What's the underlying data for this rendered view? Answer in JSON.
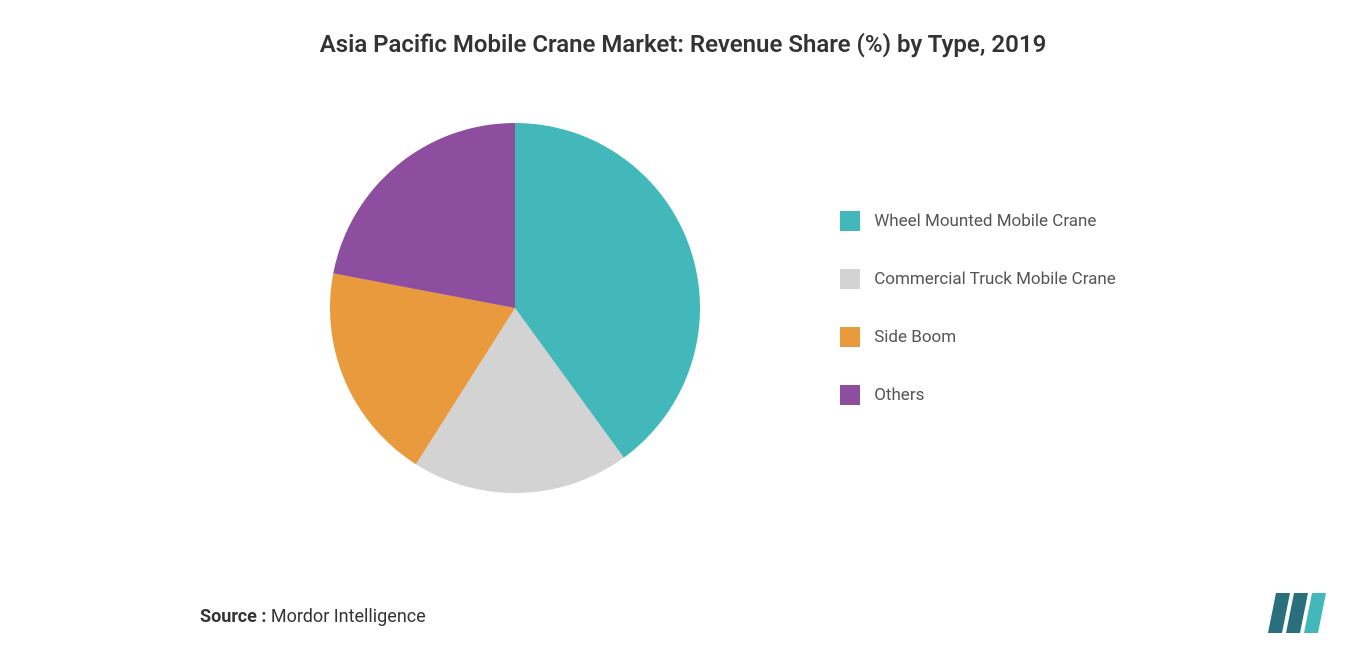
{
  "chart": {
    "type": "pie",
    "title": "Asia Pacific Mobile Crane Market: Revenue Share (%) by Type, 2019",
    "title_fontsize": 24,
    "title_color": "#333333",
    "background_color": "#ffffff",
    "radius": 185,
    "slices": [
      {
        "label": "Wheel Mounted Mobile Crane",
        "value": 40,
        "color": "#42b8bb"
      },
      {
        "label": "Commercial Truck Mobile Crane",
        "value": 19,
        "color": "#d4d3d3"
      },
      {
        "label": "Side Boom",
        "value": 19,
        "color": "#e99a3c"
      },
      {
        "label": "Others",
        "value": 22,
        "color": "#8d4ea0"
      }
    ],
    "start_angle_deg": -90,
    "legend": {
      "position": "right",
      "swatch_size": 20,
      "label_fontsize": 17,
      "label_color": "#555555",
      "gap": 38
    }
  },
  "source": {
    "label": "Source :",
    "value": " Mordor Intelligence",
    "fontsize": 18,
    "label_weight": 700,
    "color": "#333333"
  },
  "logo": {
    "bars": [
      "#2a6f7c",
      "#2a6f7c",
      "#42b8bb"
    ],
    "name": "mordor-intelligence-logo"
  }
}
